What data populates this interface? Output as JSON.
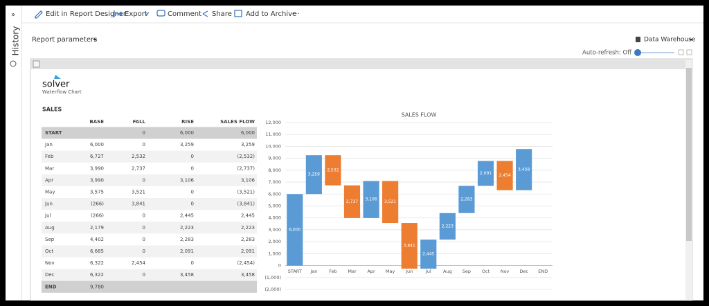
{
  "toolbar": {
    "items": [
      "Edit in Report Designer",
      "Export",
      "Comment",
      "Share",
      "Add to Archive"
    ],
    "more": "···",
    "expand": "»"
  },
  "sidebar": {
    "label": "History"
  },
  "parameters": {
    "label": "Report parameters",
    "source": "Data Warehouse",
    "auto_refresh": "Auto-refresh: Off"
  },
  "report": {
    "logo": "solver",
    "subtitle": "Waterflow Chart",
    "section": "SALES",
    "table": {
      "columns": [
        "BASE",
        "FALL",
        "RISE",
        "SALES FLOW"
      ],
      "rows": [
        [
          "START",
          null,
          "0",
          "6,000",
          "6,000"
        ],
        [
          "Jan",
          "6,000",
          "0",
          "3,259",
          "3,259"
        ],
        [
          "Feb",
          "6,727",
          "2,532",
          "0",
          "(2,532)"
        ],
        [
          "Mar",
          "3,990",
          "2,737",
          "0",
          "(2,737)"
        ],
        [
          "Apr",
          "3,990",
          "0",
          "3,106",
          "3,106"
        ],
        [
          "May",
          "3,575",
          "3,521",
          "0",
          "(3,521)"
        ],
        [
          "Jun",
          "(266)",
          "3,841",
          "0",
          "(3,841)"
        ],
        [
          "Jul",
          "(266)",
          "0",
          "2,445",
          "2,445"
        ],
        [
          "Aug",
          "2,179",
          "0",
          "2,223",
          "2,223"
        ],
        [
          "Sep",
          "4,402",
          "0",
          "2,283",
          "2,283"
        ],
        [
          "Oct",
          "6,685",
          "0",
          "2,091",
          "2,091"
        ],
        [
          "Nov",
          "6,322",
          "2,454",
          "0",
          "(2,454)"
        ],
        [
          "Dec",
          "6,322",
          "0",
          "3,458",
          "3,458"
        ],
        [
          "END",
          "9,780",
          null,
          null,
          null
        ]
      ]
    }
  },
  "chart": {
    "type": "waterfall",
    "title": "SALES FLOW",
    "categories": [
      "START",
      "Jan",
      "Feb",
      "Mar",
      "Apr",
      "May",
      "Jun",
      "Jul",
      "Aug",
      "Sep",
      "Oct",
      "Nov",
      "Dec",
      "END"
    ],
    "values": [
      6000,
      3259,
      -2532,
      -2737,
      3106,
      -3521,
      -3841,
      2445,
      2223,
      2283,
      2091,
      -2454,
      3458,
      null
    ],
    "value_labels": [
      "6,000",
      "3,259",
      "2,532",
      "2,737",
      "3,106",
      "3,521",
      "3,841",
      "2,445",
      "2,223",
      "2,283",
      "2,091",
      "2,454",
      "3,458",
      null
    ],
    "rise_color": "#5b9bd5",
    "fall_color": "#ed7d31",
    "ylim": [
      -2000,
      12000
    ],
    "yticks": [
      {
        "value": -2000,
        "label": "(2,000)"
      },
      {
        "value": -1000,
        "label": "(1,000)"
      },
      0,
      {
        "value": 1000,
        "label": "1,000"
      },
      {
        "value": 2000,
        "label": "2,000"
      },
      {
        "value": 3000,
        "label": "3,000"
      },
      {
        "value": 4000,
        "label": "4,000"
      },
      {
        "value": 5000,
        "label": "5,000"
      },
      {
        "value": 6000,
        "label": "6,000"
      },
      {
        "value": 7000,
        "label": "7,000"
      },
      {
        "value": 8000,
        "label": "8,000"
      },
      {
        "value": 9000,
        "label": "9,000"
      },
      {
        "value": 10000,
        "label": "10,000"
      },
      {
        "value": 11000,
        "label": "11,000"
      },
      {
        "value": 12000,
        "label": "12,000"
      }
    ],
    "grid": true
  }
}
